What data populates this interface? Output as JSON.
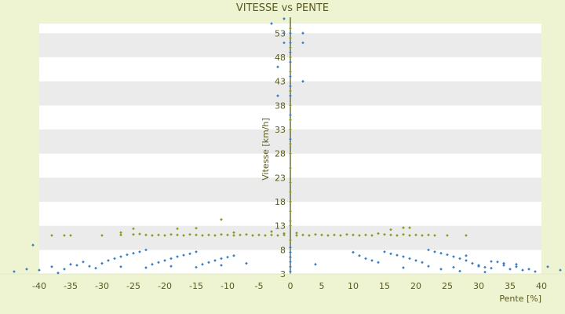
{
  "chart_data": {
    "type": "scatter",
    "title": "VITESSE vs PENTE",
    "xlabel": "Pente [%]",
    "ylabel": "Vitesse [km/h]",
    "xlim": [
      -40,
      40
    ],
    "ylim": [
      3,
      55
    ],
    "x_ticks": [
      -40,
      -35,
      -30,
      -25,
      -20,
      -15,
      -10,
      -5,
      0,
      5,
      10,
      15,
      20,
      25,
      30,
      35,
      40
    ],
    "y_ticks": [
      3,
      8,
      13,
      18,
      23,
      28,
      33,
      38,
      43,
      48,
      53
    ],
    "grid": "horizontal-bands",
    "legend": "none",
    "colors": {
      "plot_bg_light": "#ffffff",
      "plot_bg_band": "#ebebeb",
      "outer_bg": "#eef3d2",
      "axis": "#4a4a10",
      "blue_points": "#3b7fc4",
      "green_points": "#8a9a1c",
      "text": "#5a5a1e"
    },
    "series": [
      {
        "color": "blue",
        "description_shape": "V-shaped bands diverging from 0 slope",
        "points": [
          [
            -44,
            3.5
          ],
          [
            -42,
            4.0
          ],
          [
            -40,
            3.8
          ],
          [
            -38,
            4.5
          ],
          [
            -36,
            4.0
          ],
          [
            -34,
            4.8
          ],
          [
            -33,
            5.5
          ],
          [
            -35,
            5.0
          ],
          [
            -32,
            4.6
          ],
          [
            -30,
            5.2
          ],
          [
            -29,
            5.8
          ],
          [
            -28,
            6.2
          ],
          [
            -27,
            6.6
          ],
          [
            -26,
            7.0
          ],
          [
            -25,
            7.3
          ],
          [
            -24,
            7.6
          ],
          [
            -23,
            8.0
          ],
          [
            -22,
            5.0
          ],
          [
            -21,
            5.4
          ],
          [
            -20,
            5.8
          ],
          [
            -19,
            6.2
          ],
          [
            -18,
            6.6
          ],
          [
            -17,
            6.9
          ],
          [
            -16,
            7.2
          ],
          [
            -15,
            7.6
          ],
          [
            -14,
            5.0
          ],
          [
            -13,
            5.4
          ],
          [
            -12,
            5.8
          ],
          [
            -11,
            6.2
          ],
          [
            -10,
            6.5
          ],
          [
            -9,
            6.8
          ],
          [
            -31,
            4.2
          ],
          [
            -27,
            4.5
          ],
          [
            -23,
            4.3
          ],
          [
            -19,
            4.6
          ],
          [
            -15,
            4.4
          ],
          [
            -11,
            4.8
          ],
          [
            -7,
            5.2
          ],
          [
            -41,
            9.0
          ],
          [
            -37,
            3.2
          ],
          [
            0,
            3.5
          ],
          [
            0,
            4.5
          ],
          [
            0,
            5.5
          ],
          [
            0,
            6.5
          ],
          [
            0,
            7.5
          ],
          [
            0,
            8.5
          ],
          [
            0,
            53
          ],
          [
            0,
            51
          ],
          [
            0,
            49
          ],
          [
            0,
            47
          ],
          [
            0,
            44
          ],
          [
            0,
            42
          ],
          [
            0,
            40
          ],
          [
            0,
            36
          ],
          [
            0,
            31
          ],
          [
            -1,
            56
          ],
          [
            -1,
            53
          ],
          [
            -1,
            51
          ],
          [
            -2,
            40
          ],
          [
            -2,
            46
          ],
          [
            2,
            51
          ],
          [
            2,
            53
          ],
          [
            2,
            43
          ],
          [
            -3,
            55
          ],
          [
            10,
            7.5
          ],
          [
            11,
            6.8
          ],
          [
            12,
            6.2
          ],
          [
            13,
            5.8
          ],
          [
            14,
            5.4
          ],
          [
            15,
            7.6
          ],
          [
            16,
            7.2
          ],
          [
            17,
            6.9
          ],
          [
            18,
            6.6
          ],
          [
            19,
            6.2
          ],
          [
            20,
            5.8
          ],
          [
            21,
            5.4
          ],
          [
            22,
            8.0
          ],
          [
            23,
            7.6
          ],
          [
            24,
            7.3
          ],
          [
            25,
            7.0
          ],
          [
            26,
            6.6
          ],
          [
            27,
            6.2
          ],
          [
            28,
            5.8
          ],
          [
            29,
            5.2
          ],
          [
            30,
            4.6
          ],
          [
            31,
            4.4
          ],
          [
            32,
            4.2
          ],
          [
            33,
            5.5
          ],
          [
            34,
            4.8
          ],
          [
            35,
            4.0
          ],
          [
            36,
            4.5
          ],
          [
            37,
            3.8
          ],
          [
            38,
            4.0
          ],
          [
            39,
            3.5
          ],
          [
            41,
            4.5
          ],
          [
            43,
            3.8
          ],
          [
            44,
            5.0
          ],
          [
            18,
            4.3
          ],
          [
            22,
            4.6
          ],
          [
            26,
            4.4
          ],
          [
            30,
            4.8
          ],
          [
            34,
            5.2
          ],
          [
            4,
            5.0
          ],
          [
            28,
            6.8
          ],
          [
            32,
            5.6
          ],
          [
            36,
            5.0
          ],
          [
            24,
            4.0
          ],
          [
            27,
            3.6
          ],
          [
            31,
            3.4
          ]
        ]
      },
      {
        "color": "green",
        "description_shape": "horizontal cluster near 11 km/h and vertical line at 0",
        "points": [
          [
            -38,
            11.0
          ],
          [
            -35,
            11.0
          ],
          [
            -30,
            11.0
          ],
          [
            -27,
            11.1
          ],
          [
            -25,
            11.2
          ],
          [
            -24,
            11.3
          ],
          [
            -23,
            11.1
          ],
          [
            -22,
            11.0
          ],
          [
            -21,
            11.1
          ],
          [
            -20,
            11.0
          ],
          [
            -19,
            11.2
          ],
          [
            -18,
            11.1
          ],
          [
            -17,
            11.0
          ],
          [
            -16,
            11.2
          ],
          [
            -15,
            11.1
          ],
          [
            -14,
            11.0
          ],
          [
            -13,
            11.1
          ],
          [
            -12,
            11.0
          ],
          [
            -11,
            11.2
          ],
          [
            -10,
            11.1
          ],
          [
            -9,
            11.0
          ],
          [
            -8,
            11.1
          ],
          [
            -7,
            11.2
          ],
          [
            -6,
            11.0
          ],
          [
            -5,
            11.1
          ],
          [
            -4,
            11.0
          ],
          [
            -3,
            11.1
          ],
          [
            -2,
            11.0
          ],
          [
            -1,
            11.1
          ],
          [
            1,
            11.0
          ],
          [
            2,
            11.1
          ],
          [
            3,
            11.0
          ],
          [
            4,
            11.2
          ],
          [
            5,
            11.1
          ],
          [
            6,
            11.0
          ],
          [
            7,
            11.1
          ],
          [
            8,
            11.0
          ],
          [
            9,
            11.2
          ],
          [
            10,
            11.1
          ],
          [
            11,
            11.0
          ],
          [
            12,
            11.1
          ],
          [
            13,
            11.0
          ],
          [
            15,
            11.2
          ],
          [
            16,
            11.1
          ],
          [
            17,
            11.0
          ],
          [
            18,
            11.2
          ],
          [
            19,
            11.0
          ],
          [
            20,
            11.1
          ],
          [
            21,
            11.0
          ],
          [
            22,
            11.1
          ],
          [
            23,
            11.0
          ],
          [
            25,
            11.0
          ],
          [
            28,
            11.0
          ],
          [
            -25,
            12.4
          ],
          [
            -18,
            12.4
          ],
          [
            -15,
            12.5
          ],
          [
            -11,
            14.3
          ],
          [
            -27,
            11.6
          ],
          [
            -9,
            11.6
          ],
          [
            16,
            12.2
          ],
          [
            18,
            12.6
          ],
          [
            19,
            12.6
          ],
          [
            14,
            11.4
          ],
          [
            -3,
            11.8
          ],
          [
            -36,
            11.0
          ],
          [
            0,
            10.0
          ],
          [
            0,
            14.0
          ],
          [
            0,
            18.0
          ],
          [
            0,
            20.0
          ],
          [
            0,
            22.0
          ],
          [
            0,
            25.0
          ],
          [
            0,
            28.0
          ],
          [
            0,
            30.0
          ],
          [
            0,
            33.0
          ],
          [
            0,
            35.0
          ],
          [
            0,
            38.0
          ],
          [
            0,
            41.0
          ],
          [
            0,
            45.0
          ],
          [
            0,
            48.0
          ],
          [
            0,
            50.0
          ],
          [
            0,
            52.0
          ],
          [
            0,
            54.0
          ],
          [
            0,
            13.0
          ],
          [
            0,
            16.0
          ],
          [
            -1,
            11.4
          ],
          [
            1,
            11.5
          ]
        ]
      }
    ]
  }
}
